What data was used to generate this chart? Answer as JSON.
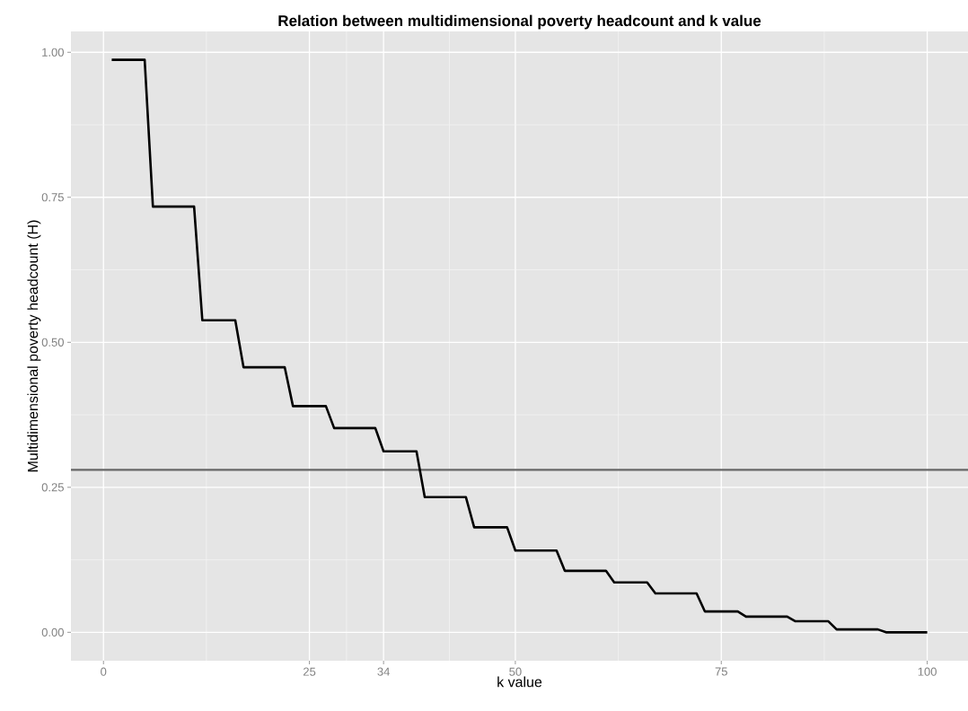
{
  "chart_data": {
    "type": "line",
    "title": "Relation between multidimensional poverty headcount and k value",
    "xlabel": "k value",
    "ylabel": "Multidimensional poverty headcount (H)",
    "x": [
      1,
      5,
      6,
      11,
      12,
      16,
      17,
      22,
      23,
      27,
      28,
      33,
      34,
      38,
      39,
      44,
      45,
      49,
      50,
      55,
      56,
      61,
      62,
      66,
      67,
      72,
      73,
      77,
      78,
      83,
      84,
      88,
      89,
      94,
      95,
      100
    ],
    "series": [
      {
        "color": "#000000",
        "values": [
          0.987,
          0.987,
          0.734,
          0.734,
          0.538,
          0.538,
          0.457,
          0.457,
          0.39,
          0.39,
          0.352,
          0.352,
          0.312,
          0.312,
          0.233,
          0.233,
          0.181,
          0.181,
          0.141,
          0.141,
          0.106,
          0.106,
          0.086,
          0.086,
          0.067,
          0.067,
          0.036,
          0.036,
          0.027,
          0.027,
          0.019,
          0.019,
          0.005,
          0.005,
          0.0,
          0.0
        ]
      }
    ],
    "xlim": [
      -3.95,
      104.95
    ],
    "ylim": [
      -0.049,
      1.036
    ],
    "xticks": [
      0,
      25,
      34,
      50,
      75,
      100
    ],
    "yticks": [
      {
        "value": 0,
        "label": "0.00"
      },
      {
        "value": 0.25,
        "label": "0.25"
      },
      {
        "value": 0.5,
        "label": "0.50"
      },
      {
        "value": 0.75,
        "label": "0.75"
      },
      {
        "value": 1,
        "label": "1.00"
      }
    ],
    "ref_lines": [
      {
        "axis": "y",
        "value": 0.28,
        "color": "#666666"
      }
    ],
    "grid": true
  }
}
